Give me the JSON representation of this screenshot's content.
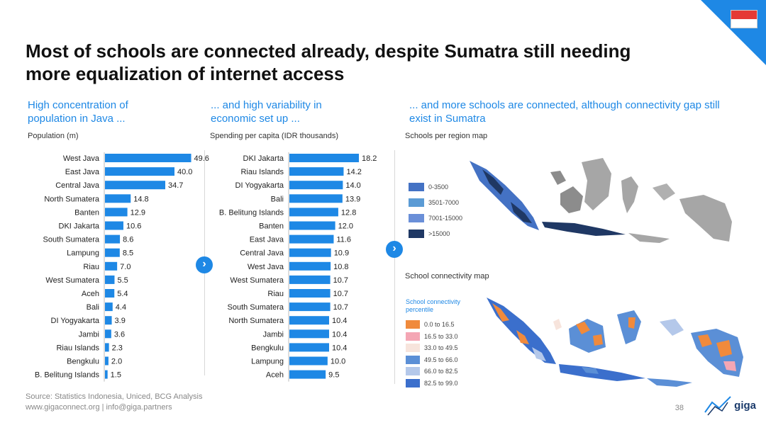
{
  "title": "Most of schools are connected already, despite Sumatra still needing more equalization of internet access",
  "col1": {
    "heading": "High concentration of population in Java ...",
    "axis_label": "Population (m)"
  },
  "col2": {
    "heading": "... and high variability in economic set up ...",
    "axis_label": "Spending per capita (IDR thousands)"
  },
  "col3": {
    "heading": "... and more schools are connected, although connectivity gap still exist in Sumatra"
  },
  "map1": {
    "title": "Schools per region map",
    "legend": [
      {
        "label": "0-3500",
        "color": "#4472c4"
      },
      {
        "label": "3501-7000",
        "color": "#5b9bd5"
      },
      {
        "label": "7001-15000",
        "color": "#6a8fd8"
      },
      {
        "label": ">15000",
        "color": "#1f3864"
      }
    ]
  },
  "map2": {
    "title": "School connectivity map",
    "legend_title": "School connectivity percentile",
    "legend": [
      {
        "label": "0.0 to 16.5",
        "color": "#f08a3c"
      },
      {
        "label": "16.5 to 33.0",
        "color": "#f4a6b4"
      },
      {
        "label": "33.0 to 49.5",
        "color": "#f7e4dc"
      },
      {
        "label": "49.5 to 66.0",
        "color": "#5b8fd6"
      },
      {
        "label": "66.0 to 82.5",
        "color": "#b4c8ea"
      },
      {
        "label": "82.5 to 99.0",
        "color": "#3b6fcc"
      }
    ]
  },
  "chart_data": [
    {
      "type": "bar",
      "orientation": "horizontal",
      "xlabel": "Population (m)",
      "color": "#1e88e5",
      "categories": [
        "West Java",
        "East Java",
        "Central Java",
        "North Sumatera",
        "Banten",
        "DKI Jakarta",
        "South Sumatera",
        "Lampung",
        "Riau",
        "West Sumatera",
        "Aceh",
        "Bali",
        "DI Yogyakarta",
        "Jambi",
        "Riau Islands",
        "Bengkulu",
        "B. Belitung Islands"
      ],
      "values": [
        49.6,
        40.0,
        34.7,
        14.8,
        12.9,
        10.6,
        8.6,
        8.5,
        7.0,
        5.5,
        5.4,
        4.4,
        3.9,
        3.6,
        2.3,
        2.0,
        1.5
      ],
      "labels": [
        "49.6",
        "40.0",
        "34.7",
        "14.8",
        "12.9",
        "10.6",
        "8.6",
        "8.5",
        "7.0",
        "5.5",
        "5.4",
        "4.4",
        "3.9",
        "3.6",
        "2.3",
        "2.0",
        "1.5"
      ]
    },
    {
      "type": "bar",
      "orientation": "horizontal",
      "xlabel": "Spending per capita (IDR thousands)",
      "color": "#1e88e5",
      "categories": [
        "DKI Jakarta",
        "Riau Islands",
        "DI Yogyakarta",
        "Bali",
        "B. Belitung Islands",
        "Banten",
        "East Java",
        "Central Java",
        "West Java",
        "West Sumatera",
        "Riau",
        "South Sumatera",
        "North Sumatera",
        "Jambi",
        "Bengkulu",
        "Lampung",
        "Aceh"
      ],
      "values": [
        18.2,
        14.2,
        14.0,
        13.9,
        12.8,
        12.0,
        11.6,
        10.9,
        10.8,
        10.7,
        10.7,
        10.7,
        10.4,
        10.4,
        10.4,
        10.0,
        9.5
      ],
      "labels": [
        "18.2",
        "14.2",
        "14.0",
        "13.9",
        "12.8",
        "12.0",
        "11.6",
        "10.9",
        "10.8",
        "10.7",
        "10.7",
        "10.7",
        "10.4",
        "10.4",
        "10.4",
        "10.0",
        "9.5"
      ]
    }
  ],
  "footer": {
    "source": "Source: Statistics Indonesia, Uniced, BCG Analysis",
    "contact": "www.gigaconnect.org  |  info@giga.partners"
  },
  "page_number": "38",
  "logo_text": "giga",
  "icons": {
    "next": "chevron-right-icon",
    "flag": "indonesia-flag-icon",
    "logo": "giga-logo-icon"
  }
}
